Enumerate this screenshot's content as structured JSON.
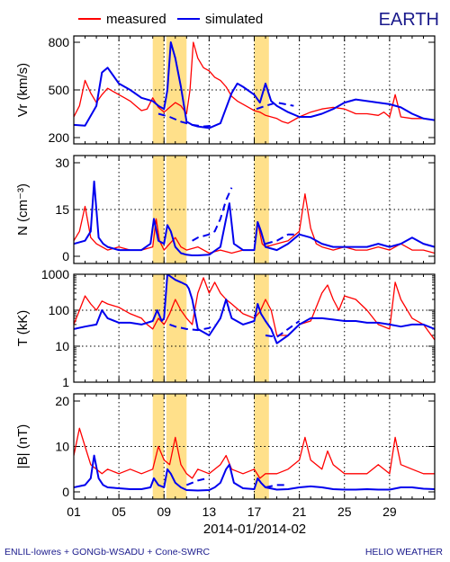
{
  "title": "EARTH",
  "legend": [
    {
      "label": "measured",
      "color": "#ff0000"
    },
    {
      "label": "simulated",
      "color": "#0000ee"
    }
  ],
  "xaxis_title": "2014-01/2014-02",
  "x_tick_labels": [
    "01",
    "05",
    "09",
    "13",
    "17",
    "21",
    "25",
    "29"
  ],
  "footer_left": "ENLIL-lowres + GONGb-WSADU + Cone-SWRC",
  "footer_right": "HELIO WEATHER",
  "highlight_color": "#ffe08a",
  "chart_data": [
    {
      "type": "line",
      "ylabel": "Vr (km/s)",
      "ylim": [
        200,
        800
      ],
      "ytick_labels": [
        "200",
        "500",
        "800"
      ],
      "xlim": [
        1,
        33
      ],
      "xticks": [
        1,
        5,
        9,
        13,
        17,
        21,
        25,
        29
      ],
      "highlights": [
        [
          8,
          9
        ],
        [
          9.2,
          11
        ],
        [
          17,
          18.3
        ]
      ],
      "series": [
        {
          "name": "measured",
          "color": "#ff0000",
          "x": [
            1,
            1.5,
            2,
            2.5,
            3,
            3.5,
            4,
            4.5,
            5,
            5.5,
            6,
            6.5,
            7,
            7.5,
            8,
            8.5,
            9,
            9.5,
            10,
            10.5,
            11,
            11.3,
            11.6,
            12,
            12.5,
            13,
            13.5,
            14,
            14.5,
            15,
            15.5,
            16,
            16.5,
            17,
            17.5,
            18,
            18.5,
            19,
            19.5,
            20,
            21,
            22,
            23,
            24,
            25,
            26,
            27,
            28,
            28.5,
            29,
            29.5,
            30,
            31,
            32,
            33
          ],
          "y": [
            330,
            400,
            560,
            480,
            420,
            470,
            510,
            490,
            470,
            450,
            430,
            400,
            370,
            380,
            450,
            390,
            360,
            390,
            420,
            400,
            350,
            500,
            800,
            700,
            640,
            620,
            580,
            560,
            520,
            460,
            430,
            410,
            390,
            370,
            360,
            340,
            330,
            320,
            300,
            290,
            330,
            360,
            380,
            390,
            380,
            350,
            350,
            340,
            360,
            330,
            470,
            330,
            320,
            320,
            310
          ]
        },
        {
          "name": "simulated",
          "color": "#0000ee",
          "x": [
            1,
            2,
            3,
            3.5,
            4,
            5,
            6,
            7,
            8,
            8.5,
            9,
            9.3,
            9.6,
            10,
            10.5,
            11,
            11.5,
            12,
            13,
            14,
            15,
            15.5,
            16,
            17,
            17.5,
            18,
            18.5,
            19,
            20,
            21,
            22,
            23,
            24,
            25,
            26,
            27,
            28,
            29,
            30,
            31,
            32,
            33
          ],
          "y": [
            280,
            275,
            400,
            610,
            640,
            540,
            500,
            450,
            430,
            400,
            380,
            500,
            800,
            700,
            520,
            300,
            280,
            270,
            260,
            290,
            480,
            540,
            520,
            470,
            420,
            540,
            430,
            400,
            360,
            330,
            330,
            350,
            380,
            420,
            440,
            430,
            420,
            410,
            390,
            350,
            320,
            310
          ]
        },
        {
          "name": "simulated",
          "color": "#0000ee",
          "dashed": true,
          "x": [
            8.5,
            9.5,
            10.5,
            11.5,
            12.5,
            13.3
          ],
          "y": [
            350,
            330,
            300,
            280,
            270,
            275
          ]
        },
        {
          "name": "simulated",
          "color": "#0000ee",
          "dashed": true,
          "x": [
            17.2,
            18,
            19,
            20.5
          ],
          "y": [
            380,
            400,
            420,
            400
          ]
        }
      ]
    },
    {
      "type": "line",
      "ylabel": "N (cm⁻³)",
      "ylim": [
        0,
        30
      ],
      "ytick_labels": [
        "0",
        "15",
        "30"
      ],
      "xlim": [
        1,
        33
      ],
      "xticks": [
        1,
        5,
        9,
        13,
        17,
        21,
        25,
        29
      ],
      "highlights": [
        [
          8,
          9
        ],
        [
          9.2,
          11
        ],
        [
          17,
          18.3
        ]
      ],
      "series": [
        {
          "name": "measured",
          "color": "#ff0000",
          "x": [
            1,
            1.5,
            2,
            2.5,
            3,
            3.5,
            4,
            5,
            6,
            7,
            8,
            8.3,
            8.6,
            9,
            9.5,
            10,
            10.5,
            11,
            12,
            13,
            14,
            15,
            16,
            17,
            17.3,
            17.7,
            18,
            19,
            20,
            21,
            21.5,
            22,
            22.5,
            23,
            24,
            25,
            26,
            27,
            28,
            29,
            30,
            31,
            32,
            33
          ],
          "y": [
            5,
            8,
            16,
            6,
            4,
            3,
            2,
            3,
            2,
            2,
            3,
            12,
            5,
            2,
            4,
            6,
            3,
            2,
            3,
            1,
            2,
            1,
            2,
            2,
            11,
            4,
            3,
            4,
            5,
            8,
            20,
            9,
            4,
            3,
            2,
            3,
            2,
            2,
            3,
            2,
            4,
            2,
            2,
            1
          ]
        },
        {
          "name": "simulated",
          "color": "#0000ee",
          "x": [
            1,
            2,
            2.5,
            2.8,
            3.2,
            3.6,
            4,
            5,
            6,
            7,
            7.8,
            8.1,
            8.5,
            9,
            9.3,
            9.6,
            10,
            10.5,
            11,
            11.5,
            12,
            13,
            14,
            14.5,
            14.8,
            15.2,
            16,
            17,
            17.3,
            17.6,
            18,
            19,
            20,
            21,
            22,
            23,
            24,
            25,
            26,
            27,
            28,
            29,
            30,
            31,
            32,
            33
          ],
          "y": [
            4,
            5,
            8,
            24,
            6,
            4,
            3,
            2,
            2,
            2,
            4,
            12,
            5,
            4,
            10,
            8,
            3,
            1,
            0.5,
            0.3,
            0.3,
            0.5,
            3,
            12,
            17,
            4,
            2,
            2,
            11,
            8,
            3,
            2,
            4,
            7,
            6,
            4,
            3,
            3,
            3,
            3,
            4,
            3,
            4,
            6,
            4,
            3
          ]
        },
        {
          "name": "simulated",
          "color": "#0000ee",
          "dashed": true,
          "x": [
            11.5,
            12,
            12.5,
            13,
            13.5,
            14,
            14.5,
            15
          ],
          "y": [
            5,
            6,
            6.5,
            7,
            8,
            12,
            18,
            22
          ]
        },
        {
          "name": "simulated",
          "color": "#0000ee",
          "dashed": true,
          "x": [
            18,
            19,
            19.5,
            20,
            21
          ],
          "y": [
            4,
            5,
            6,
            7,
            7
          ]
        }
      ]
    },
    {
      "type": "line",
      "yscale": "log",
      "ylabel": "T (kK)",
      "ylim": [
        1,
        1000
      ],
      "ytick_labels": [
        "1",
        "10",
        "100",
        "1000"
      ],
      "xlim": [
        1,
        33
      ],
      "xticks": [
        1,
        5,
        9,
        13,
        17,
        21,
        25,
        29
      ],
      "highlights": [
        [
          8,
          9
        ],
        [
          9.2,
          11
        ],
        [
          17,
          18.3
        ]
      ],
      "series": [
        {
          "name": "measured",
          "color": "#ff0000",
          "x": [
            1,
            1.5,
            2,
            2.5,
            3,
            3.5,
            4,
            5,
            6,
            7,
            7.5,
            8,
            8.5,
            9,
            9.5,
            10,
            10.5,
            11,
            11.5,
            12,
            12.5,
            13,
            13.5,
            14,
            14.5,
            15,
            16,
            17,
            17.5,
            18,
            18.5,
            19,
            20,
            21,
            22,
            23,
            23.5,
            24,
            24.5,
            25,
            26,
            27,
            28,
            29,
            29.5,
            30,
            31,
            32,
            33
          ],
          "y": [
            40,
            100,
            250,
            150,
            100,
            180,
            150,
            120,
            80,
            60,
            40,
            30,
            60,
            40,
            80,
            200,
            100,
            60,
            40,
            300,
            800,
            300,
            600,
            300,
            200,
            150,
            80,
            60,
            90,
            200,
            100,
            20,
            20,
            40,
            50,
            300,
            500,
            200,
            100,
            250,
            200,
            100,
            40,
            30,
            600,
            200,
            60,
            40,
            15
          ]
        },
        {
          "name": "simulated",
          "color": "#0000ee",
          "x": [
            1,
            2,
            3,
            3.5,
            4,
            5,
            6,
            7,
            8,
            8.4,
            8.8,
            9,
            9.3,
            9.5,
            10,
            10.5,
            11,
            11.2,
            11.5,
            12,
            13,
            14,
            14.5,
            15,
            16,
            17,
            17.3,
            17.6,
            18,
            18.5,
            19,
            20,
            21,
            22,
            23,
            24,
            25,
            26,
            27,
            28,
            29,
            30,
            31,
            32,
            33
          ],
          "y": [
            30,
            35,
            40,
            100,
            60,
            45,
            45,
            40,
            50,
            100,
            50,
            60,
            1000,
            900,
            700,
            600,
            500,
            400,
            200,
            30,
            20,
            60,
            200,
            60,
            40,
            50,
            150,
            80,
            50,
            30,
            12,
            20,
            40,
            60,
            60,
            55,
            50,
            50,
            45,
            45,
            40,
            35,
            40,
            40,
            30
          ]
        },
        {
          "name": "simulated",
          "color": "#0000ee",
          "dashed": true,
          "x": [
            9.5,
            10,
            11,
            12,
            13,
            13.5
          ],
          "y": [
            40,
            35,
            30,
            28,
            32,
            40
          ]
        },
        {
          "name": "simulated",
          "color": "#0000ee",
          "dashed": true,
          "x": [
            18,
            19,
            20,
            21
          ],
          "y": [
            20,
            18,
            30,
            50
          ]
        }
      ]
    },
    {
      "type": "line",
      "ylabel": "|B| (nT)",
      "ylim": [
        0,
        20
      ],
      "ytick_labels": [
        "0",
        "10",
        "20"
      ],
      "xlim": [
        1,
        33
      ],
      "xticks": [
        1,
        5,
        9,
        13,
        17,
        21,
        25,
        29
      ],
      "highlights": [
        [
          8,
          9
        ],
        [
          9.2,
          11
        ],
        [
          17,
          18.3
        ]
      ],
      "series": [
        {
          "name": "measured",
          "color": "#ff0000",
          "x": [
            1,
            1.5,
            2,
            2.5,
            3,
            3.5,
            4,
            5,
            6,
            7,
            8,
            8.5,
            9,
            9.5,
            10,
            10.5,
            11,
            11.5,
            12,
            13,
            14,
            14.5,
            15,
            16,
            17,
            17.5,
            18,
            19,
            20,
            21,
            21.5,
            22,
            23,
            23.5,
            24,
            25,
            26,
            27,
            28,
            29,
            29.5,
            30,
            31,
            32,
            33
          ],
          "y": [
            8,
            14,
            10,
            6,
            5,
            4,
            5,
            4,
            5,
            4,
            5,
            10,
            7,
            6,
            12,
            6,
            4,
            3,
            5,
            4,
            6,
            8,
            5,
            4,
            5,
            3,
            4,
            4,
            5,
            7,
            12,
            7,
            5,
            9,
            6,
            4,
            4,
            4,
            6,
            4,
            12,
            6,
            5,
            4,
            4
          ]
        },
        {
          "name": "simulated",
          "color": "#0000ee",
          "x": [
            1,
            2,
            2.5,
            2.8,
            3.2,
            3.6,
            4,
            5,
            6,
            7,
            7.8,
            8.1,
            8.5,
            9,
            9.3,
            9.6,
            10,
            10.5,
            11,
            12,
            13,
            13.5,
            14,
            14.5,
            14.8,
            15.2,
            16,
            17,
            17.3,
            17.6,
            18,
            19,
            20,
            21,
            22,
            23,
            24,
            25,
            26,
            27,
            28,
            29,
            30,
            31,
            32,
            33
          ],
          "y": [
            1,
            1.5,
            3,
            8,
            3,
            1.5,
            1,
            0.8,
            0.6,
            0.6,
            1,
            3,
            1.5,
            1,
            5,
            4,
            2,
            1,
            0.4,
            0.3,
            0.4,
            1,
            2,
            5,
            6,
            2,
            0.8,
            0.6,
            3,
            2,
            1,
            0.5,
            0.6,
            1,
            1.2,
            1,
            0.6,
            0.5,
            0.5,
            0.6,
            0.5,
            0.5,
            1,
            1,
            0.7,
            0.6
          ]
        },
        {
          "name": "simulated",
          "color": "#0000ee",
          "dashed": true,
          "x": [
            11,
            11.5,
            12,
            12.5,
            13
          ],
          "y": [
            1.5,
            2,
            2.5,
            2.8,
            3
          ]
        },
        {
          "name": "simulated",
          "color": "#0000ee",
          "dashed": true,
          "x": [
            18,
            19,
            20
          ],
          "y": [
            1,
            1.5,
            1.5
          ]
        }
      ]
    }
  ]
}
